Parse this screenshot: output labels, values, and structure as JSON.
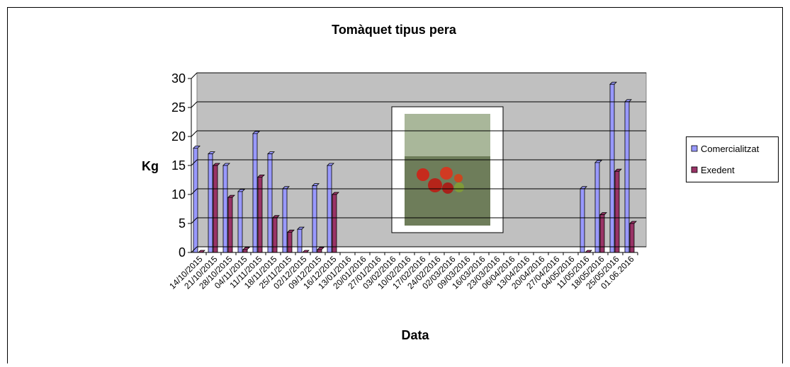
{
  "chart_data": {
    "type": "bar",
    "title": "Tomàquet tipus pera",
    "x_label": "Data",
    "y_label": "Kg",
    "categories": [
      "14/10/2015",
      "21/10/2015",
      "28/10/2015",
      "04/11/2015",
      "11/11/2015",
      "18/11/2015",
      "25/11/2015",
      "02/12/2015",
      "09/12/2015",
      "16/12/2015",
      "13/01/2016",
      "20/01/2016",
      "27/01/2016",
      "03/02/2016",
      "10/02/2016",
      "17/02/2016",
      "24/02/2016",
      "02/03/2016",
      "09/03/2016",
      "16/03/2016",
      "23/03/2016",
      "06/04/2016",
      "13/04/2016",
      "20/04/2016",
      "27/04/2016",
      "04/05/2016",
      "11/05/2016",
      "18/05/2016",
      "25/05/2016",
      "01.06.2016"
    ],
    "series": [
      {
        "name": "Comercialitzat",
        "color": "#9999ff",
        "values": [
          18,
          17,
          15,
          10.5,
          20.5,
          17,
          11,
          4,
          11.5,
          15,
          null,
          null,
          null,
          null,
          null,
          null,
          null,
          null,
          null,
          null,
          null,
          null,
          null,
          null,
          null,
          null,
          11,
          15.5,
          29,
          26
        ]
      },
      {
        "name": "Exedent",
        "color": "#993366",
        "values": [
          0,
          15,
          9.5,
          0.5,
          13,
          6,
          3.5,
          0,
          0.5,
          10,
          null,
          null,
          null,
          null,
          null,
          null,
          null,
          null,
          null,
          null,
          null,
          null,
          null,
          null,
          null,
          null,
          0,
          6.5,
          14,
          5
        ]
      }
    ],
    "ylim": [
      0,
      30
    ],
    "yticks": [
      0,
      5,
      10,
      15,
      20,
      25,
      30
    ],
    "grid": true,
    "legend": "right"
  }
}
